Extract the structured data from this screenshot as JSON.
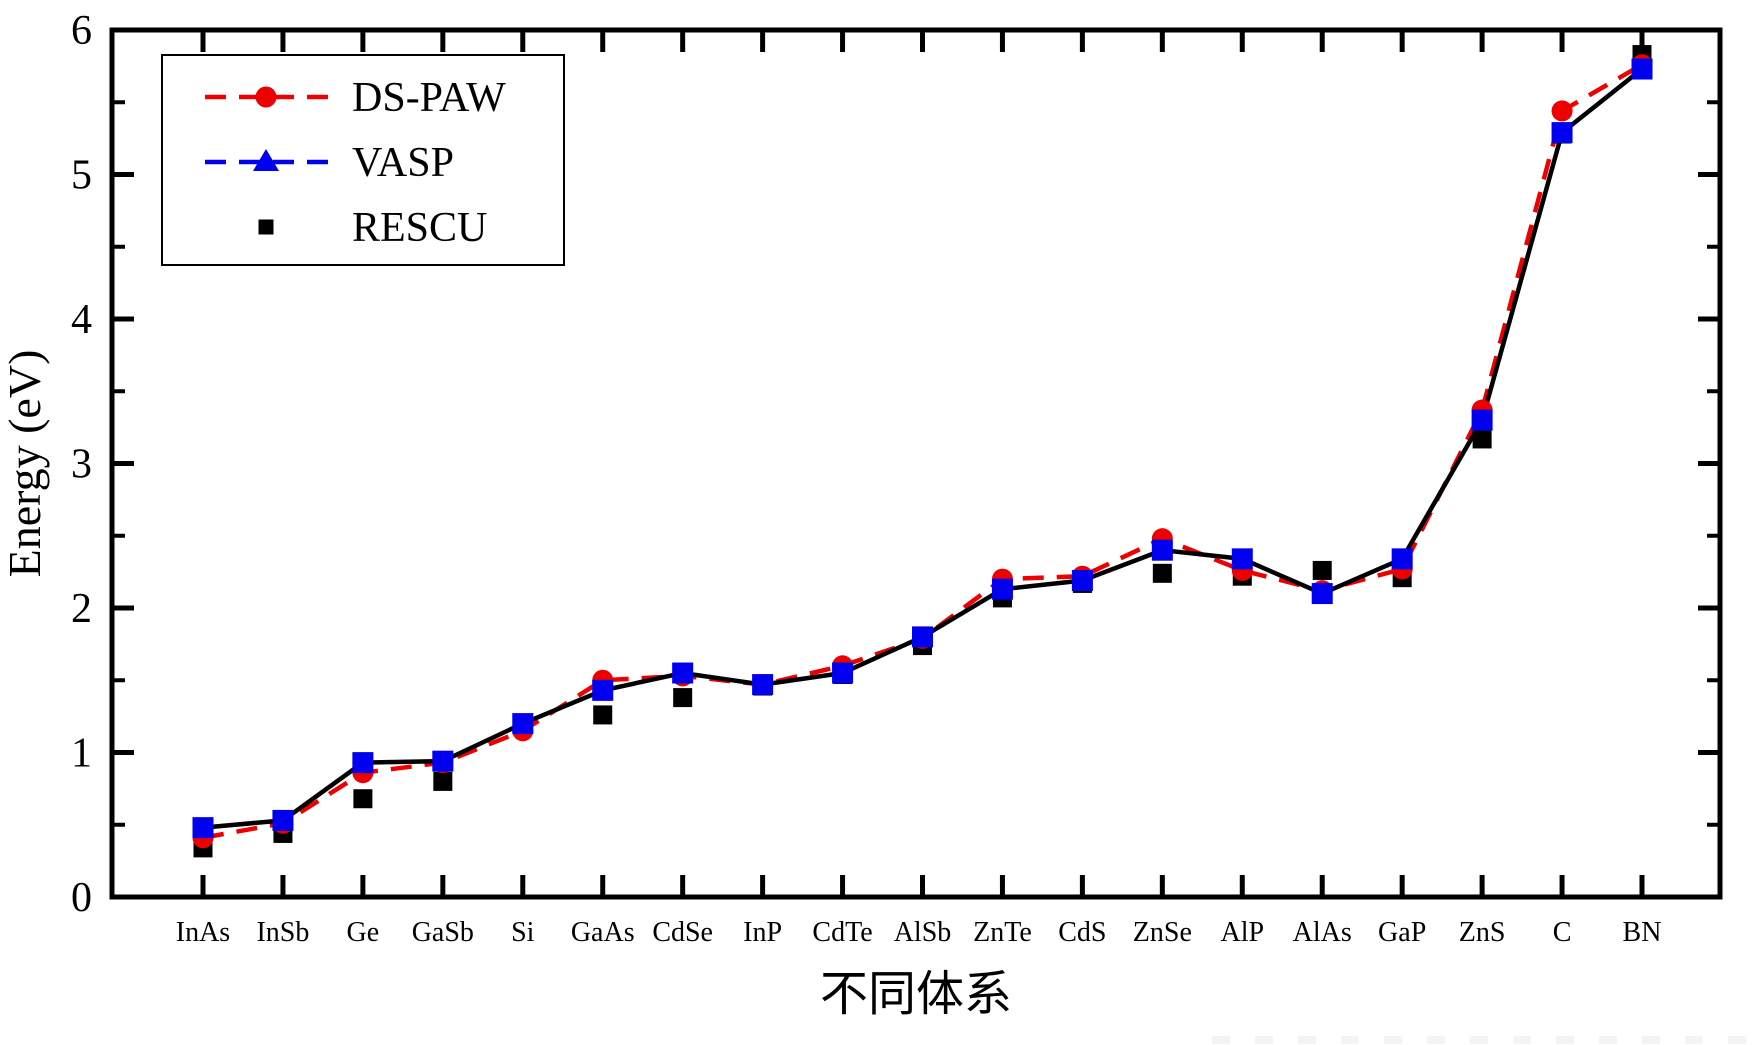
{
  "chart_data": {
    "type": "line",
    "title": "",
    "xlabel": "不同体系",
    "ylabel": "Energy (eV)",
    "ylim": [
      0,
      6
    ],
    "y_major_ticks": [
      0,
      1,
      2,
      3,
      4,
      5,
      6
    ],
    "y_minor_step": 0.5,
    "grid": false,
    "legend_position": "top-left",
    "categories": [
      "InAs",
      "InSb",
      "Ge",
      "GaSb",
      "Si",
      "GaAs",
      "CdSe",
      "InP",
      "CdTe",
      "AlSb",
      "ZnTe",
      "CdS",
      "ZnSe",
      "AlP",
      "AlAs",
      "GaP",
      "ZnS",
      "C",
      "BN"
    ],
    "series": [
      {
        "name": "DS-PAW",
        "marker": "circle",
        "marker_color": "#ee0000",
        "plot_line": {
          "style": "dashed",
          "color": "#ee0000"
        },
        "legend_line": {
          "style": "dashed",
          "color": "#ee0000"
        },
        "legend_marker": "circle",
        "values": [
          0.41,
          0.51,
          0.86,
          0.93,
          1.15,
          1.5,
          1.53,
          1.47,
          1.6,
          1.79,
          2.2,
          2.22,
          2.48,
          2.26,
          2.12,
          2.27,
          3.37,
          5.44,
          5.76
        ]
      },
      {
        "name": "VASP",
        "marker": "square",
        "marker_color": "#0000ee",
        "plot_line": {
          "style": "solid",
          "color": "#000000"
        },
        "legend_line": {
          "style": "dashed",
          "color": "#0000ee"
        },
        "legend_marker": "triangle",
        "values": [
          0.48,
          0.53,
          0.93,
          0.94,
          1.2,
          1.43,
          1.55,
          1.47,
          1.55,
          1.8,
          2.13,
          2.19,
          2.4,
          2.34,
          2.1,
          2.34,
          3.3,
          5.29,
          5.73
        ]
      },
      {
        "name": "RESCU",
        "marker": "square-small",
        "marker_color": "#000000",
        "plot_line": {
          "style": "none",
          "color": "#000000"
        },
        "legend_line": {
          "style": "none",
          "color": "#000000"
        },
        "legend_marker": "square-small",
        "values": [
          0.34,
          0.44,
          0.68,
          0.8,
          1.19,
          1.26,
          1.38,
          1.46,
          1.54,
          1.74,
          2.07,
          2.17,
          2.24,
          2.22,
          2.26,
          2.21,
          3.17,
          5.28,
          5.83
        ]
      }
    ]
  },
  "colors": {
    "axis": "#000000",
    "background": "#ffffff",
    "watermark_mark": "#f4f4f4"
  }
}
